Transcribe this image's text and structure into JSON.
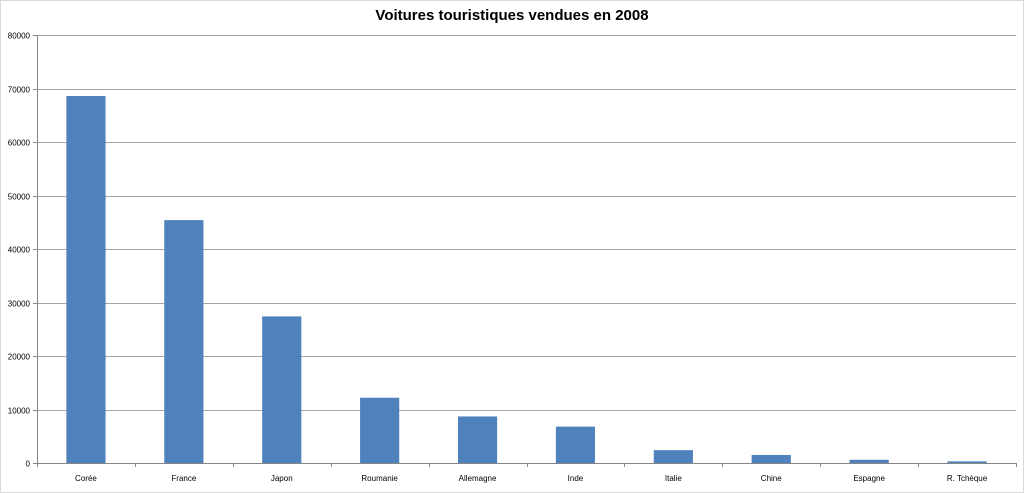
{
  "chart_data": {
    "type": "bar",
    "title": "Voitures touristiques vendues en 2008",
    "categories": [
      "Corée",
      "France",
      "Japon",
      "Roumanie",
      "Allemagne",
      "Inde",
      "Italie",
      "Chine",
      "Espagne",
      "R. Tchèque"
    ],
    "values": [
      68600,
      45400,
      27400,
      12200,
      8700,
      6800,
      2400,
      1500,
      600,
      300
    ],
    "ylim": [
      0,
      80000
    ],
    "yticks": [
      "0",
      "10000",
      "20000",
      "30000",
      "40000",
      "50000",
      "60000",
      "70000",
      "80000"
    ],
    "xlabel": "",
    "ylabel": "",
    "grid": true,
    "legend": "none",
    "bar_color": "#4f81bd",
    "grid_color": "#a6a6a6"
  }
}
